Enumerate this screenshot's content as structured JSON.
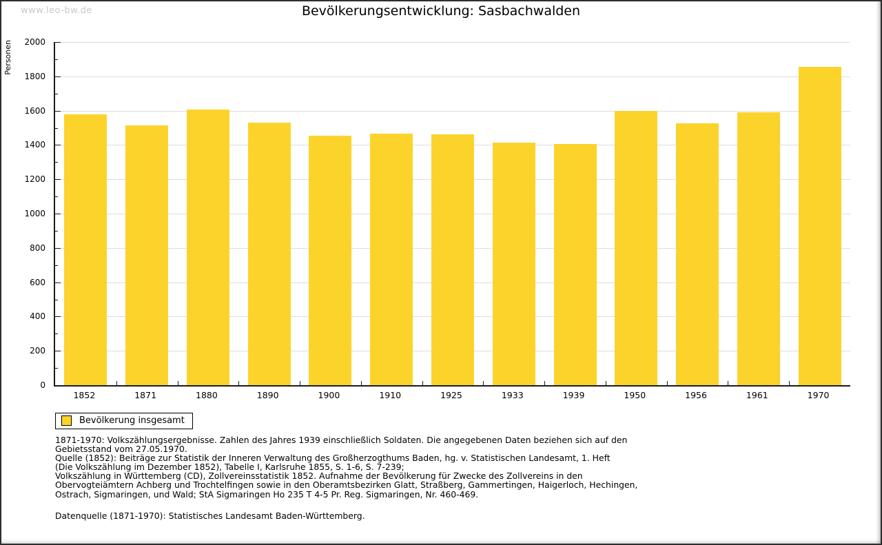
{
  "watermark": "www.leo-bw.de",
  "title": "Bevölkerungsentwicklung: Sasbachwalden",
  "legend": {
    "label": "Bevölkerung insgesamt",
    "swatch_color": "#fcd32b"
  },
  "chart_data": {
    "type": "bar",
    "title": "Bevölkerungsentwicklung: Sasbachwalden",
    "categories": [
      "1852",
      "1871",
      "1880",
      "1890",
      "1900",
      "1910",
      "1925",
      "1933",
      "1939",
      "1950",
      "1956",
      "1961",
      "1970"
    ],
    "values": [
      1578,
      1514,
      1605,
      1529,
      1455,
      1466,
      1462,
      1415,
      1406,
      1598,
      1525,
      1589,
      1857
    ],
    "series_name": "Bevölkerung insgesamt",
    "xlabel": "",
    "ylabel": "Personen",
    "ylim": [
      0,
      2000
    ],
    "ytick_step": 200,
    "minor_tick_step": 100,
    "bar_color": "#fcd32b",
    "gridline_color": "#dcdcdc",
    "grid": "horizontal-major-only",
    "legend_position": "bottom-left"
  },
  "footer": {
    "lines": [
      "1871-1970: Volkszählungsergebnisse. Zahlen des Jahres 1939 einschließlich Soldaten. Die angegebenen Daten beziehen sich auf den",
      "Gebietsstand vom 27.05.1970.",
      "Quelle (1852): Beiträge zur Statistik der Inneren Verwaltung des Großherzogthums Baden, hg. v. Statistischen Landesamt, 1. Heft",
      "(Die Volkszählung im Dezember 1852), Tabelle I, Karlsruhe 1855, S. 1-6, S. 7-239;",
      "Volkszählung in Württemberg (CD), Zollvereinsstatistik 1852. Aufnahme der Bevölkerung für Zwecke des Zollvereins in den",
      "Obervogteiämtern Achberg und Trochtelfingen sowie in den Oberamtsbezirken Glatt, Straßberg, Gammertingen, Haigerloch, Hechingen,",
      "Ostrach, Sigmaringen, und Wald; StA Sigmaringen Ho 235 T 4-5 Pr. Reg. Sigmaringen, Nr. 460-469."
    ],
    "datasource_line": "Datenquelle (1871-1970): Statistisches Landesamt Baden-Württemberg."
  }
}
